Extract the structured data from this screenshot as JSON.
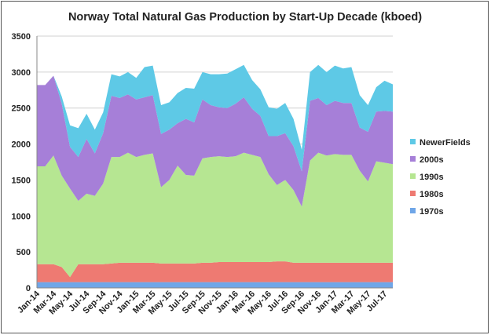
{
  "chart_data": {
    "type": "area",
    "stacked": true,
    "title": "Norway Total Natural Gas Production by Start-Up Decade (kboed)",
    "xlabel": "",
    "ylabel": "",
    "ylim": [
      0,
      3500
    ],
    "yticks": [
      0,
      500,
      1000,
      1500,
      2000,
      2500,
      3000,
      3500
    ],
    "grid": "horizontal",
    "legend_position": "right",
    "x": [
      "Jan-14",
      "Feb-14",
      "Mar-14",
      "Apr-14",
      "May-14",
      "Jun-14",
      "Jul-14",
      "Aug-14",
      "Sep-14",
      "Oct-14",
      "Nov-14",
      "Dec-14",
      "Jan-15",
      "Feb-15",
      "Mar-15",
      "Apr-15",
      "May-15",
      "Jun-15",
      "Jul-15",
      "Aug-15",
      "Sep-15",
      "Oct-15",
      "Nov-15",
      "Dec-15",
      "Jan-16",
      "Feb-16",
      "Mar-16",
      "Apr-16",
      "May-16",
      "Jun-16",
      "Jul-16",
      "Aug-16",
      "Sep-16",
      "Oct-16",
      "Nov-16",
      "Dec-16",
      "Jan-17",
      "Feb-17",
      "Mar-17",
      "Apr-17",
      "May-17",
      "Jun-17",
      "Jul-17",
      "Aug-17"
    ],
    "xtick_labels": [
      "Jan-14",
      "Mar-14",
      "May-14",
      "Jul-14",
      "Sep-14",
      "Nov-14",
      "Jan-15",
      "Mar-15",
      "May-15",
      "Jul-15",
      "Sep-15",
      "Nov-15",
      "Jan-16",
      "Mar-16",
      "May-16",
      "Jul-16",
      "Sep-16",
      "Nov-16",
      "Jan-17",
      "Mar-17",
      "May-17",
      "Jul-17"
    ],
    "series": [
      {
        "name": "1970s",
        "color": "#6fa6e8",
        "values": [
          80,
          80,
          80,
          80,
          80,
          80,
          80,
          80,
          80,
          80,
          80,
          80,
          80,
          80,
          80,
          80,
          80,
          80,
          80,
          80,
          80,
          80,
          80,
          80,
          80,
          80,
          80,
          80,
          80,
          80,
          80,
          80,
          80,
          80,
          80,
          80,
          80,
          80,
          80,
          80,
          80,
          80,
          80,
          80
        ]
      },
      {
        "name": "1980s",
        "color": "#ee7a72",
        "values": [
          250,
          250,
          250,
          210,
          70,
          250,
          250,
          250,
          250,
          260,
          270,
          270,
          270,
          270,
          270,
          260,
          260,
          260,
          260,
          260,
          270,
          270,
          280,
          280,
          280,
          280,
          280,
          280,
          280,
          290,
          290,
          270,
          270,
          270,
          270,
          270,
          270,
          270,
          270,
          270,
          270,
          270,
          270,
          270
        ]
      },
      {
        "name": "1990s",
        "color": "#b6e692",
        "values": [
          1360,
          1360,
          1510,
          1270,
          1230,
          880,
          980,
          950,
          1120,
          1480,
          1470,
          1530,
          1470,
          1500,
          1520,
          1060,
          1160,
          1360,
          1230,
          1220,
          1450,
          1470,
          1470,
          1460,
          1470,
          1520,
          1490,
          1460,
          1220,
          1060,
          1130,
          1010,
          780,
          1420,
          1530,
          1490,
          1510,
          1500,
          1500,
          1280,
          1130,
          1410,
          1390,
          1370
        ]
      },
      {
        "name": "2000s",
        "color": "#a67fd8",
        "values": [
          1130,
          1130,
          1110,
          1000,
          580,
          610,
          760,
          590,
          700,
          850,
          820,
          810,
          800,
          800,
          810,
          740,
          700,
          590,
          780,
          740,
          820,
          720,
          680,
          680,
          730,
          770,
          640,
          570,
          530,
          680,
          650,
          610,
          490,
          830,
          760,
          700,
          740,
          720,
          720,
          600,
          690,
          690,
          720,
          730
        ]
      },
      {
        "name": "NewerFields",
        "color": "#5ec9e6",
        "values": [
          0,
          0,
          0,
          100,
          300,
          400,
          350,
          330,
          290,
          300,
          300,
          310,
          300,
          420,
          410,
          400,
          380,
          420,
          430,
          470,
          380,
          430,
          460,
          480,
          480,
          450,
          400,
          370,
          400,
          380,
          420,
          380,
          300,
          400,
          460,
          460,
          490,
          480,
          500,
          450,
          370,
          340,
          420,
          380
        ]
      }
    ]
  }
}
